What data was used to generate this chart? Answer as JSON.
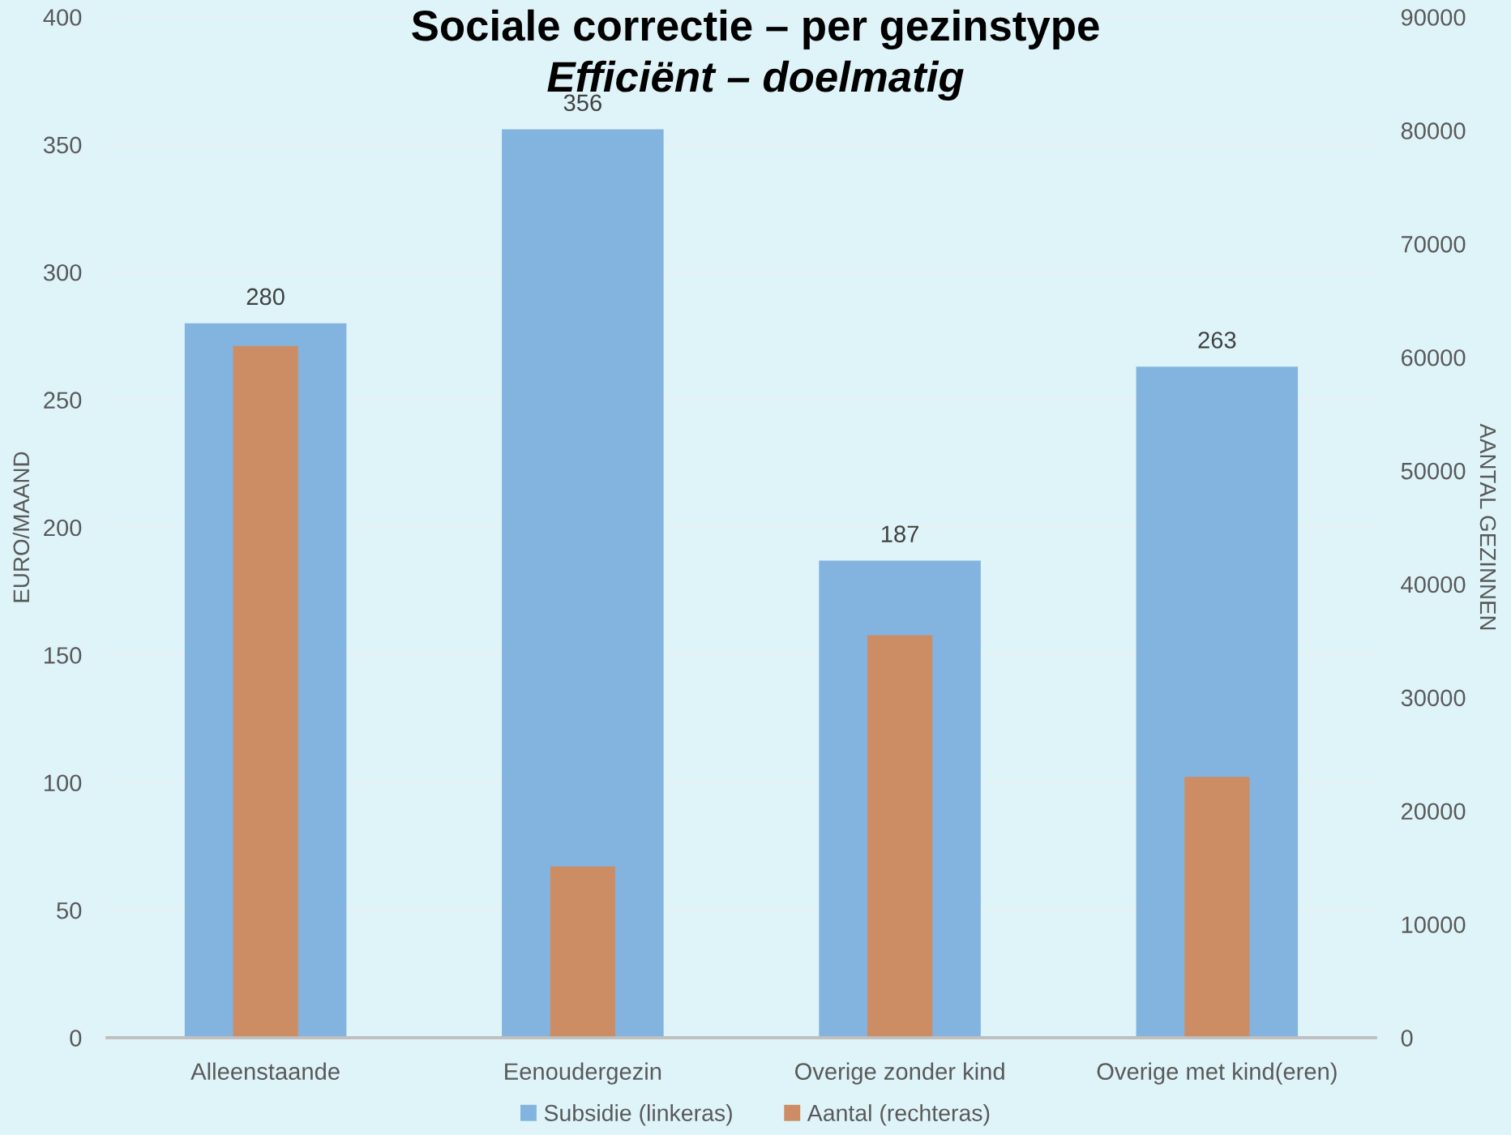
{
  "chart_data": {
    "type": "bar",
    "title": "Sociale correctie – per gezinstype",
    "subtitle": "Efficiënt – doelmatig",
    "ylabel": "EURO/MAAND",
    "y2label": "AANTAL GEZINNEN",
    "categories": [
      "Alleenstaande",
      "Eenoudergezin",
      "Overige zonder kind",
      "Overige met kind(eren)"
    ],
    "series": [
      {
        "name": "Subsidie (linkeras)",
        "color": "#83b4e0",
        "values": [
          280,
          356,
          187,
          263
        ],
        "value_labels": [
          "280",
          "356",
          "187",
          "263"
        ]
      },
      {
        "name": "Aantal (rechteras)",
        "color": "#cc8d64",
        "values": [
          61000,
          15100,
          35500,
          23000
        ],
        "axis": "y2"
      }
    ],
    "ylim": [
      0,
      400
    ],
    "yticks": [
      0,
      50,
      100,
      150,
      200,
      250,
      300,
      350,
      400
    ],
    "y2lim": [
      0,
      90000
    ],
    "y2ticks": [
      0,
      10000,
      20000,
      30000,
      40000,
      50000,
      60000,
      70000,
      80000,
      90000
    ],
    "grid": "y",
    "legend": "bottom"
  }
}
